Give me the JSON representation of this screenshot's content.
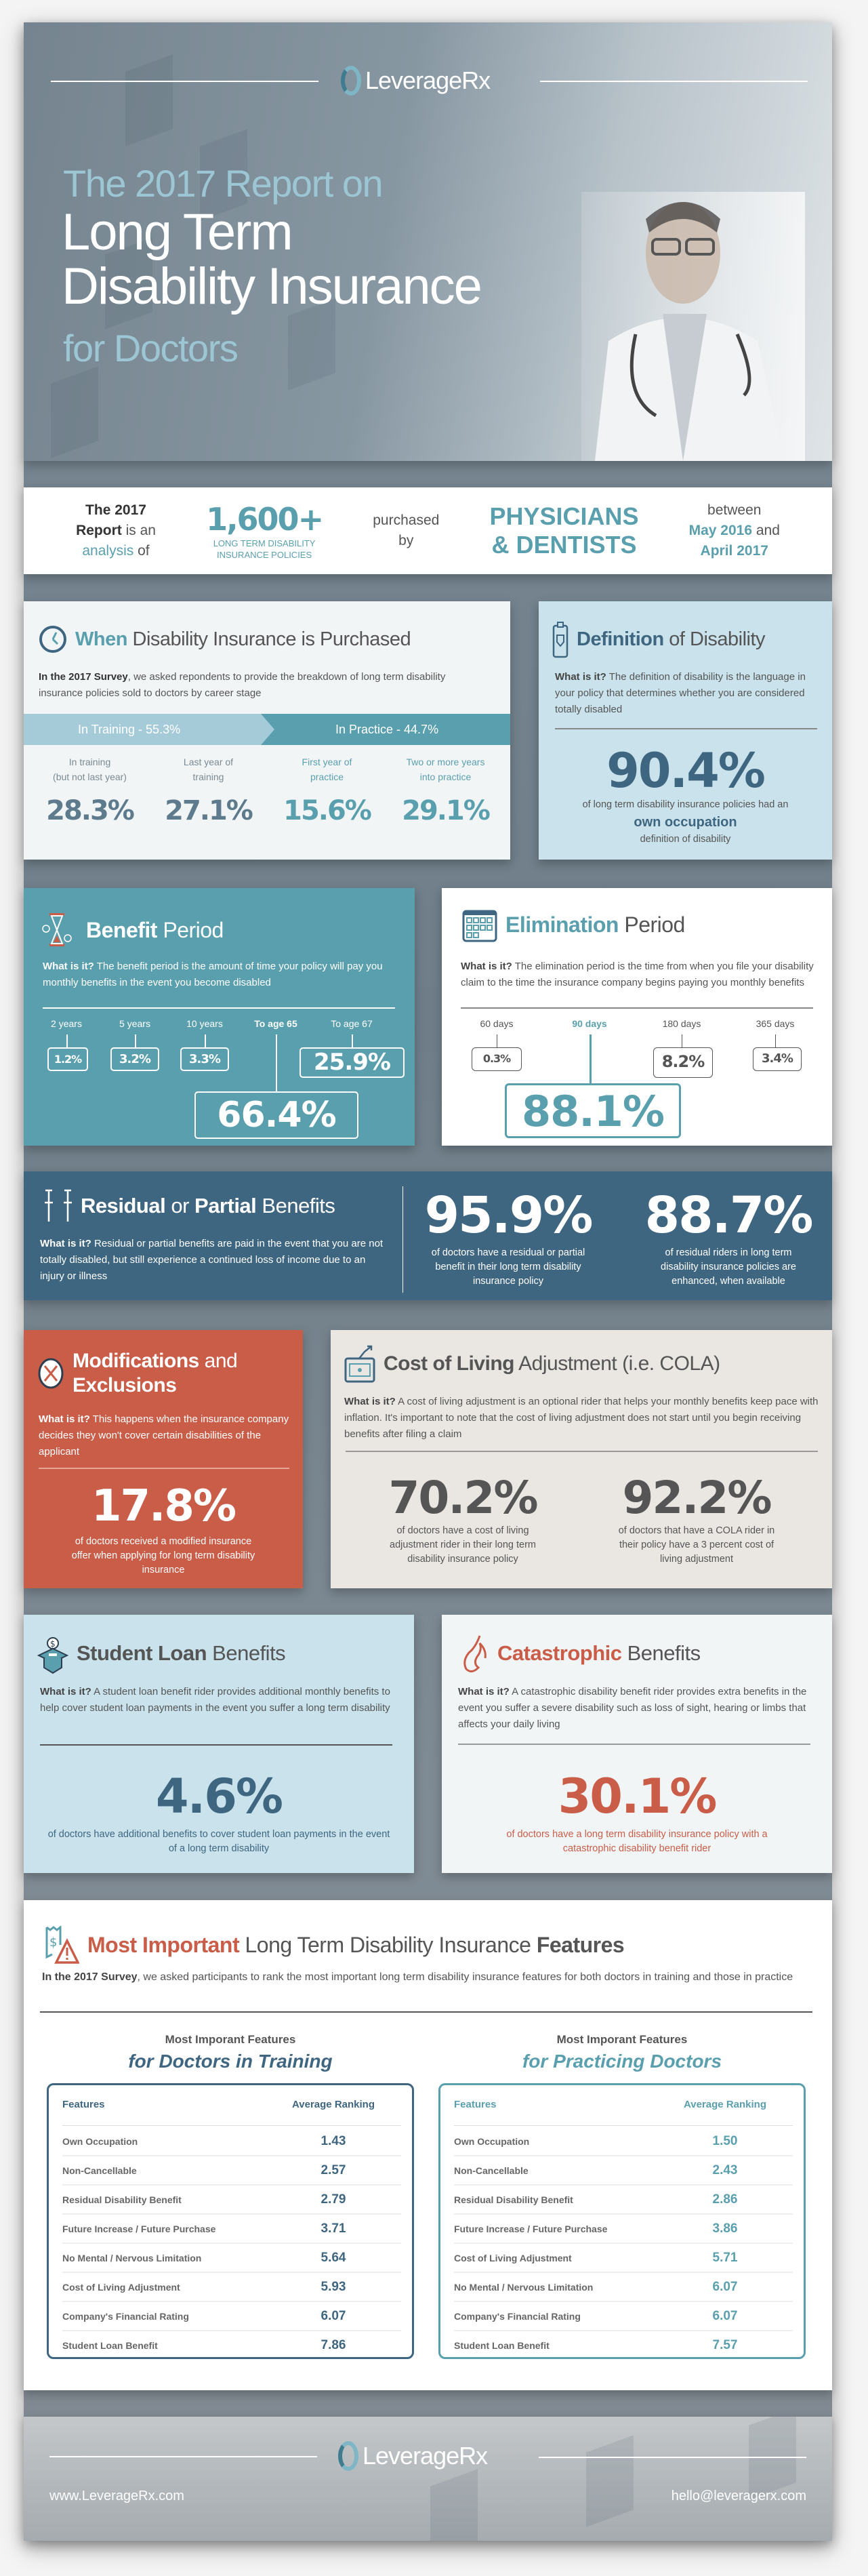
{
  "brand": {
    "name": "LeverageRx",
    "url": "www.LeverageRx.com",
    "email": "hello@leveragerx.com"
  },
  "header": {
    "line1": "The 2017 Report on",
    "line2": "Long Term",
    "line3": "Disability Insurance",
    "line4": "for Doctors"
  },
  "stats": {
    "c1a": "The 2017",
    "c1b": "Report",
    "c1c": " is an",
    "c1d": "analysis",
    "c1e": " of",
    "count": "1,600+",
    "count_label1": "LONG TERM DISABILITY",
    "count_label2": "INSURANCE POLICIES",
    "purchased": "purchased",
    "by": "by",
    "who1": "PHYSICIANS",
    "who2": "& DENTISTS",
    "between": "between",
    "from": "May 2016",
    "and": " and",
    "to": "April 2017"
  },
  "when": {
    "title_bold": "When",
    "title_rest": "Disability Insurance is Purchased",
    "intro_bold": "In the 2017 Survey",
    "intro_rest": ", we asked repondents to provide the breakdown of long term disability insurance policies sold to doctors by career stage",
    "band_training": "In Training - 55.3%",
    "band_practice": "In Practice - 44.7%",
    "stages": [
      {
        "l1": "In training",
        "l2": "(but not last year)",
        "value": "28.3%"
      },
      {
        "l1": "Last year of",
        "l2": "training",
        "value": "27.1%"
      },
      {
        "l1": "First year of",
        "l2": "practice",
        "value": "15.6%"
      },
      {
        "l1": "Two or more years",
        "l2": "into practice",
        "value": "29.1%"
      }
    ]
  },
  "definition": {
    "title_bold": "Definition",
    "title_rest": "of Disability",
    "what": "What is it?",
    "text": " The definition of disability is the language in your policy that determines whether you are considered totally disabled",
    "value": "90.4%",
    "cap1": "of long term disability insurance policies had an",
    "cap2": "own occupation",
    "cap3": "definition of disability"
  },
  "benefit": {
    "title_bold": "Benefit",
    "title_rest": "Period",
    "what": "What is it?",
    "text": " The benefit period is the amount of time your policy will pay you monthly benefits in the event you become disabled",
    "options": [
      {
        "label": "2 years",
        "value": "1.2%"
      },
      {
        "label": "5 years",
        "value": "3.2%"
      },
      {
        "label": "10 years",
        "value": "3.3%"
      },
      {
        "label": "To age 65",
        "value": "66.4%"
      },
      {
        "label": "To age 67",
        "value": "25.9%"
      }
    ]
  },
  "elimination": {
    "title_bold": "Elimination",
    "title_rest": "Period",
    "what": "What is it?",
    "text": " The elimination period is the time from when you file your disability claim to the time the insurance company begins paying you monthly benefits",
    "options": [
      {
        "label": "60 days",
        "value": "0.3%"
      },
      {
        "label": "90 days",
        "value": "88.1%"
      },
      {
        "label": "180 days",
        "value": "8.2%"
      },
      {
        "label": "365 days",
        "value": "3.4%"
      }
    ]
  },
  "residual": {
    "t1": "Residual",
    "t2": " or ",
    "t3": "Partial",
    "t4": " Benefits",
    "what": "What is it?",
    "text": " Residual or partial benefits are paid in the event that you are not totally disabled, but still experience a continued loss of income due to an injury or illness",
    "v1": "95.9%",
    "c1": "of doctors have a residual or partial benefit in their long term disability insurance policy",
    "v2": "88.7%",
    "c2": "of residual riders in long term disability insurance policies are enhanced, when available"
  },
  "mods": {
    "t1": "Modifications",
    "t2": " and",
    "t3": "Exclusions",
    "what": "What is it?",
    "text": " This happens when the insurance company decides they won't cover certain disabilities of the applicant",
    "value": "17.8%",
    "cap": "of doctors received a modified insurance offer when applying for long term disability insurance"
  },
  "cola": {
    "title_bold": "Cost of Living",
    "title_rest": "Adjustment (i.e. COLA)",
    "what": "What is it?",
    "text": " A cost of living adjustment is an optional rider that helps your monthly benefits keep pace with inflation. It's important to note that the cost of living adjustment does not start until you begin receiving benefits after filing a claim",
    "v1": "70.2%",
    "c1": "of doctors have a cost of living adjustment rider in their long term disability insurance policy",
    "v2": "92.2%",
    "c2": "of doctors that have a COLA rider in their policy have a 3 percent cost of living adjustment"
  },
  "student": {
    "title_bold": "Student Loan",
    "title_rest": "Benefits",
    "what": "What is it?",
    "text": " A student loan benefit rider provides additional monthly benefits to help cover student loan payments in the event you suffer a long term disability",
    "value": "4.6%",
    "cap": "of doctors have additional benefits to cover student loan payments in the event of a long term disability"
  },
  "catastrophic": {
    "title_bold": "Catastrophic",
    "title_rest": "Benefits",
    "what": "What is it?",
    "text": " A catastrophic disability benefit rider provides extra benefits in the event you suffer a severe disability such as loss of sight, hearing or limbs that affects your daily living",
    "value": "30.1%",
    "cap": "of doctors have a long term disability insurance policy with a catastrophic disability benefit rider"
  },
  "features": {
    "t1": "Most Important",
    "t2": " Long Term Disability Insurance ",
    "t3": "Features",
    "intro_bold": "In the 2017 Survey",
    "intro_rest": ", we asked participants to rank the most important long term disability insurance features for both doctors in training and those in practice",
    "tables": [
      {
        "sub": "Most Imporant Features",
        "title": "for Doctors in Training",
        "col1": "Features",
        "col2": "Average Ranking",
        "rows": [
          [
            "Own Occupation",
            "1.43"
          ],
          [
            "Non-Cancellable",
            "2.57"
          ],
          [
            "Residual Disability Benefit",
            "2.79"
          ],
          [
            "Future Increase / Future Purchase",
            "3.71"
          ],
          [
            "No Mental / Nervous Limitation",
            "5.64"
          ],
          [
            "Cost of Living Adjustment",
            "5.93"
          ],
          [
            "Company's Financial Rating",
            "6.07"
          ],
          [
            "Student Loan Benefit",
            "7.86"
          ]
        ]
      },
      {
        "sub": "Most Imporant Features",
        "title": "for Practicing Doctors",
        "col1": "Features",
        "col2": "Average Ranking",
        "rows": [
          [
            "Own Occupation",
            "1.50"
          ],
          [
            "Non-Cancellable",
            "2.43"
          ],
          [
            "Residual Disability Benefit",
            "2.86"
          ],
          [
            "Future Increase / Future Purchase",
            "3.86"
          ],
          [
            "Cost of Living Adjustment",
            "5.71"
          ],
          [
            "No Mental / Nervous Limitation",
            "6.07"
          ],
          [
            "Company's Financial Rating",
            "6.07"
          ],
          [
            "Student Loan Benefit",
            "7.57"
          ]
        ]
      }
    ]
  },
  "colors": {
    "teal": "#5a9fae",
    "navy": "#3f6680",
    "light_blue": "#c9e2eb",
    "red": "#c95d48",
    "beige": "#eae7e3"
  }
}
